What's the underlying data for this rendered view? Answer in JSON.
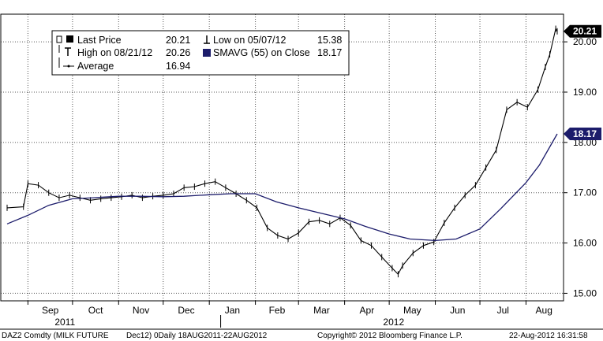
{
  "chart_data": {
    "type": "line",
    "ylim": [
      14.85,
      20.55
    ],
    "y_ticks": [
      "15.00",
      "16.00",
      "17.00",
      "18.00",
      "19.00",
      "20.00"
    ],
    "x_months": [
      "Sep",
      "Oct",
      "Nov",
      "Dec",
      "Jan",
      "Feb",
      "Mar",
      "Apr",
      "May",
      "Jun",
      "Jul",
      "Aug"
    ],
    "year_labels": [
      "2011",
      "2012"
    ],
    "grid": true,
    "legend_position": "top-left",
    "legend": {
      "last_price_label": "Last Price",
      "last_price_value": "20.21",
      "low_label": "Low on 05/07/12",
      "low_value": "15.38",
      "high_label": "High on 08/21/12",
      "high_value": "20.26",
      "smavg_label": "SMAVG (55) on Close",
      "smavg_value": "18.17",
      "average_label": "Average",
      "average_value": "16.94"
    },
    "tags": {
      "last_price": "20.21",
      "smavg": "18.17"
    },
    "colors": {
      "price": "#000000",
      "smavg": "#1c1c6b",
      "smavg_tag": "#1c1c6b",
      "price_tag": "#000000"
    },
    "series": [
      {
        "name": "Last Price",
        "x": [
          "2011-08-18",
          "2011-08-29",
          "2011-09-01",
          "2011-09-08",
          "2011-09-15",
          "2011-09-22",
          "2011-09-29",
          "2011-10-06",
          "2011-10-13",
          "2011-10-20",
          "2011-10-27",
          "2011-11-03",
          "2011-11-10",
          "2011-11-17",
          "2011-11-24",
          "2011-12-01",
          "2011-12-08",
          "2011-12-15",
          "2011-12-22",
          "2011-12-29",
          "2012-01-05",
          "2012-01-12",
          "2012-01-19",
          "2012-01-26",
          "2012-02-02",
          "2012-02-09",
          "2012-02-16",
          "2012-02-23",
          "2012-03-01",
          "2012-03-08",
          "2012-03-15",
          "2012-03-22",
          "2012-03-29",
          "2012-04-05",
          "2012-04-12",
          "2012-04-19",
          "2012-04-26",
          "2012-05-03",
          "2012-05-07",
          "2012-05-10",
          "2012-05-17",
          "2012-05-24",
          "2012-05-31",
          "2012-06-07",
          "2012-06-14",
          "2012-06-21",
          "2012-06-28",
          "2012-07-05",
          "2012-07-12",
          "2012-07-19",
          "2012-07-26",
          "2012-08-02",
          "2012-08-09",
          "2012-08-14",
          "2012-08-17",
          "2012-08-21",
          "2012-08-22"
        ],
        "values": [
          16.7,
          16.72,
          17.18,
          17.15,
          17.0,
          16.9,
          16.95,
          16.9,
          16.85,
          16.88,
          16.9,
          16.92,
          16.95,
          16.9,
          16.93,
          16.95,
          16.98,
          17.1,
          17.12,
          17.18,
          17.22,
          17.1,
          16.98,
          16.85,
          16.7,
          16.3,
          16.15,
          16.08,
          16.2,
          16.42,
          16.45,
          16.38,
          16.5,
          16.35,
          16.05,
          15.95,
          15.72,
          15.5,
          15.38,
          15.55,
          15.8,
          15.95,
          16.02,
          16.4,
          16.7,
          16.95,
          17.15,
          17.5,
          17.85,
          18.65,
          18.8,
          18.7,
          19.05,
          19.5,
          19.75,
          20.26,
          20.21
        ]
      },
      {
        "name": "SMAVG (55) on Close",
        "x": [
          "2011-08-18",
          "2011-09-01",
          "2011-09-15",
          "2011-10-01",
          "2011-10-15",
          "2011-11-01",
          "2011-11-15",
          "2011-12-01",
          "2011-12-15",
          "2012-01-01",
          "2012-01-15",
          "2012-02-01",
          "2012-02-15",
          "2012-03-01",
          "2012-03-15",
          "2012-04-01",
          "2012-04-15",
          "2012-05-01",
          "2012-05-15",
          "2012-06-01",
          "2012-06-15",
          "2012-07-01",
          "2012-07-15",
          "2012-08-01",
          "2012-08-10",
          "2012-08-22"
        ],
        "values": [
          16.38,
          16.55,
          16.75,
          16.88,
          16.9,
          16.93,
          16.93,
          16.92,
          16.93,
          16.96,
          16.98,
          16.98,
          16.82,
          16.7,
          16.6,
          16.48,
          16.33,
          16.18,
          16.08,
          16.05,
          16.08,
          16.28,
          16.68,
          17.2,
          17.55,
          18.17
        ]
      }
    ]
  },
  "footer": {
    "left": "DAZ2 Comdty (MILK FUTURE",
    "contract": "Dec12) 0Daily 18AUG2011-22AUG2012",
    "copyright": "Copyright© 2012 Bloomberg Finance L.P.",
    "timestamp": "22-Aug-2012 16:31:58"
  }
}
